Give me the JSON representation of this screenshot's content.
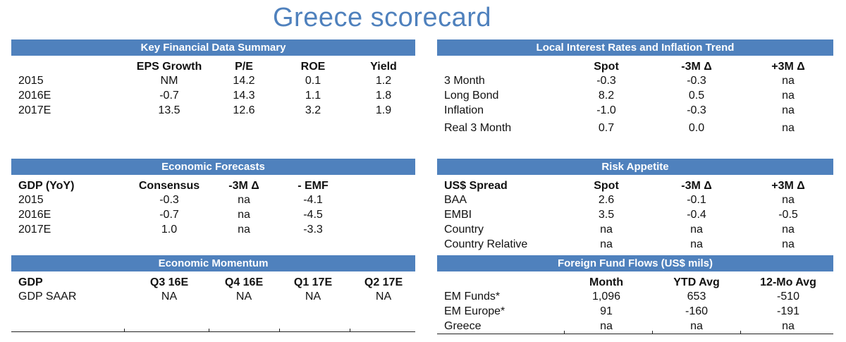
{
  "title": "Greece scorecard",
  "kfds": {
    "title": "Key Financial Data Summary",
    "cols": [
      "EPS Growth",
      "P/E",
      "ROE",
      "Yield"
    ],
    "rows": [
      {
        "label": "2015",
        "v": [
          "NM",
          "14.2",
          "0.1",
          "1.2"
        ]
      },
      {
        "label": "2016E",
        "v": [
          "-0.7",
          "14.3",
          "1.1",
          "1.8"
        ]
      },
      {
        "label": "2017E",
        "v": [
          "13.5",
          "12.6",
          "3.2",
          "1.9"
        ]
      }
    ]
  },
  "lirit": {
    "title": "Local Interest Rates and Inflation Trend",
    "cols": [
      "Spot",
      "-3M Δ",
      "+3M Δ"
    ],
    "rows": [
      {
        "label": "3 Month",
        "v": [
          "-0.3",
          "-0.3",
          "na"
        ]
      },
      {
        "label": "Long Bond",
        "v": [
          "8.2",
          "0.5",
          "na"
        ]
      },
      {
        "label": "Inflation",
        "v": [
          "-1.0",
          "-0.3",
          "na"
        ]
      },
      {
        "label": "Real 3 Month",
        "v": [
          "0.7",
          "0.0",
          "na"
        ]
      }
    ]
  },
  "econ": {
    "title": "Economic Forecasts",
    "header_label": "GDP (YoY)",
    "cols": [
      "Consensus",
      "-3M Δ",
      "- EMF"
    ],
    "rows": [
      {
        "label": "2015",
        "v": [
          "-0.3",
          "na",
          "-4.1"
        ]
      },
      {
        "label": "2016E",
        "v": [
          "-0.7",
          "na",
          "-4.5"
        ]
      },
      {
        "label": "2017E",
        "v": [
          "1.0",
          "na",
          "-3.3"
        ]
      }
    ]
  },
  "risk": {
    "title": "Risk Appetite",
    "header_label": "US$ Spread",
    "cols": [
      "Spot",
      "-3M Δ",
      "+3M Δ"
    ],
    "rows": [
      {
        "label": "BAA",
        "v": [
          "2.6",
          "-0.1",
          "na"
        ]
      },
      {
        "label": "EMBI",
        "v": [
          "3.5",
          "-0.4",
          "-0.5"
        ]
      },
      {
        "label": "Country",
        "v": [
          "na",
          "na",
          "na"
        ]
      },
      {
        "label": "Country Relative",
        "v": [
          "na",
          "na",
          "na"
        ]
      }
    ]
  },
  "momentum": {
    "title": "Economic Momentum",
    "header_label": "GDP",
    "cols": [
      "Q3 16E",
      "Q4 16E",
      "Q1 17E",
      "Q2 17E"
    ],
    "rows": [
      {
        "label": "GDP SAAR",
        "v": [
          "NA",
          "NA",
          "NA",
          "NA"
        ]
      }
    ]
  },
  "flows": {
    "title": "Foreign Fund Flows (US$ mils)",
    "cols": [
      "Month",
      "YTD Avg",
      "12-Mo Avg"
    ],
    "rows": [
      {
        "label": "EM Funds*",
        "v": [
          "1,096",
          "653",
          "-510"
        ]
      },
      {
        "label": "EM Europe*",
        "v": [
          "91",
          "-160",
          "-191"
        ]
      },
      {
        "label": "Greece",
        "v": [
          "na",
          "na",
          "na"
        ]
      }
    ]
  }
}
